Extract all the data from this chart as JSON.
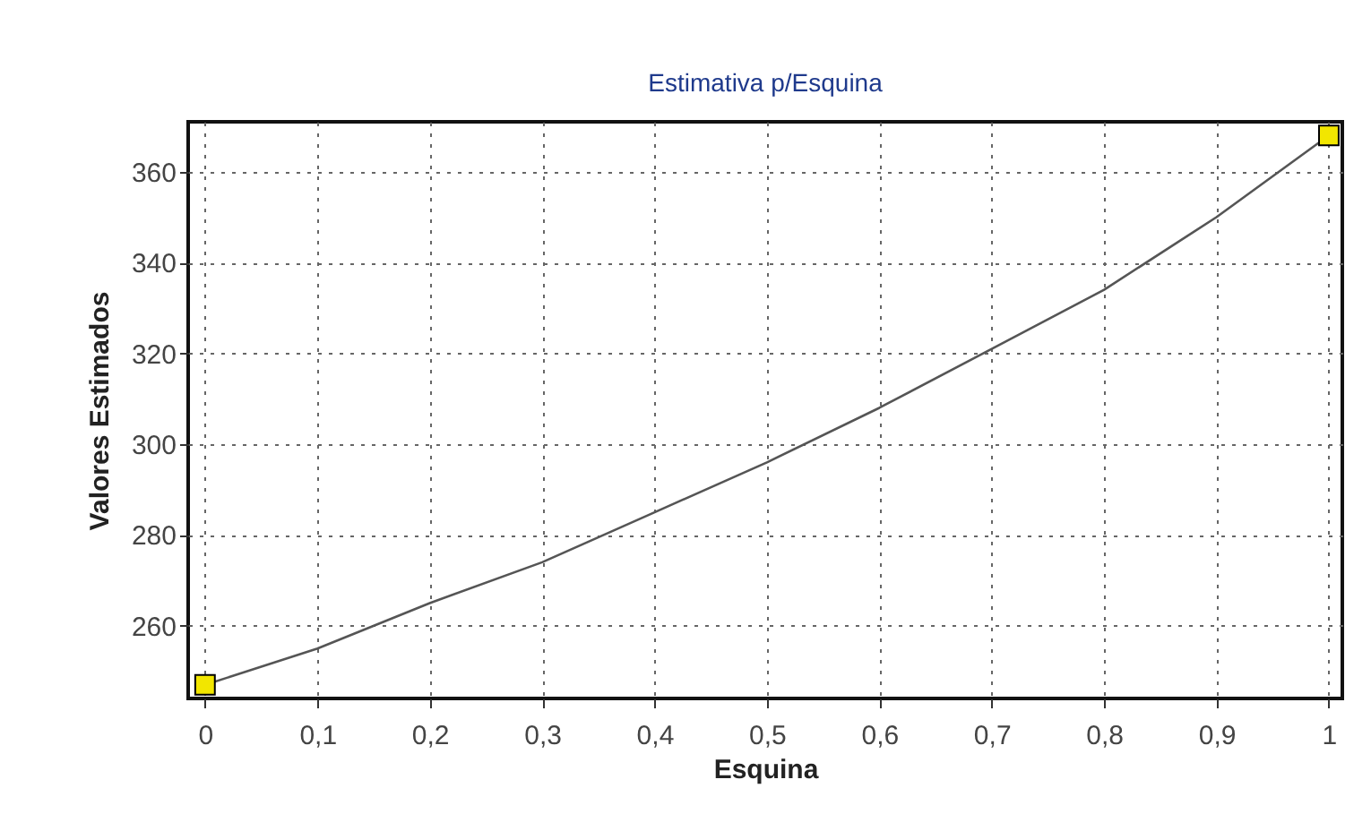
{
  "chart_data": {
    "type": "line",
    "title": "Estimativa p/Esquina",
    "xlabel": "Esquina",
    "ylabel": "Valores Estimados",
    "xlim": [
      -0.015,
      1.012
    ],
    "ylim": [
      244,
      371
    ],
    "xticks": [
      0,
      {
        "value": 0.1,
        "label": "0,1"
      },
      {
        "value": 0.2,
        "label": "0,2"
      },
      {
        "value": 0.3,
        "label": "0,3"
      },
      {
        "value": 0.4,
        "label": "0,4"
      },
      {
        "value": 0.5,
        "label": "0,5"
      },
      {
        "value": 0.6,
        "label": "0,6"
      },
      {
        "value": 0.7,
        "label": "0,7"
      },
      {
        "value": 0.8,
        "label": "0,8"
      },
      {
        "value": 0.9,
        "label": "0,9"
      },
      1
    ],
    "yticks": [
      260,
      280,
      300,
      320,
      340,
      360
    ],
    "grid": true,
    "x": [
      0,
      0.1,
      0.2,
      0.3,
      0.4,
      0.5,
      0.6,
      0.7,
      0.8,
      0.9,
      1
    ],
    "series": [
      {
        "color": "#555555",
        "marker": "none",
        "values": [
          247,
          255,
          265,
          274,
          285,
          296,
          308,
          321,
          334,
          350,
          368
        ]
      },
      {
        "type": "scatter",
        "color": "#f2e600",
        "marker": "square",
        "x": [
          0,
          1
        ],
        "values": [
          247,
          368
        ]
      }
    ]
  }
}
